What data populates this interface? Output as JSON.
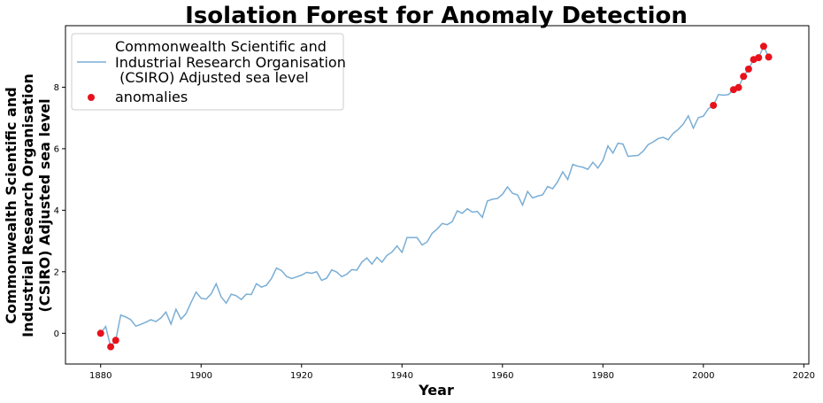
{
  "chart_data": {
    "type": "line",
    "title": "Isolation Forest for Anomaly Detection",
    "xlabel": "Year",
    "ylabel_lines": [
      "Commonwealth Scientific and",
      "Industrial Research Organisation",
      "(CSIRO) Adjusted sea level"
    ],
    "xlim": [
      1873,
      2021
    ],
    "ylim": [
      -1,
      10
    ],
    "xticks": [
      1880,
      1900,
      1920,
      1940,
      1960,
      1980,
      2000,
      2020
    ],
    "yticks": [
      0,
      2,
      4,
      6,
      8
    ],
    "legend_position": "upper-left",
    "legend": [
      {
        "label_lines": [
          "Commonwealth Scientific and",
          "Industrial Research Organisation",
          " (CSIRO) Adjusted sea level"
        ],
        "type": "line",
        "color": "#7aaed5"
      },
      {
        "label_lines": [
          "anomalies"
        ],
        "type": "marker",
        "color": "#e8121c"
      }
    ],
    "series": [
      {
        "name": "Commonwealth Scientific and Industrial Research Organisation (CSIRO) Adjusted sea level",
        "color": "#7aaed5",
        "x": [
          1880,
          1881,
          1882,
          1883,
          1884,
          1885,
          1886,
          1887,
          1888,
          1889,
          1890,
          1891,
          1892,
          1893,
          1894,
          1895,
          1896,
          1897,
          1898,
          1899,
          1900,
          1901,
          1902,
          1903,
          1904,
          1905,
          1906,
          1907,
          1908,
          1909,
          1910,
          1911,
          1912,
          1913,
          1914,
          1915,
          1916,
          1917,
          1918,
          1919,
          1920,
          1921,
          1922,
          1923,
          1924,
          1925,
          1926,
          1927,
          1928,
          1929,
          1930,
          1931,
          1932,
          1933,
          1934,
          1935,
          1936,
          1937,
          1938,
          1939,
          1940,
          1941,
          1942,
          1943,
          1944,
          1945,
          1946,
          1947,
          1948,
          1949,
          1950,
          1951,
          1952,
          1953,
          1954,
          1955,
          1956,
          1957,
          1958,
          1959,
          1960,
          1961,
          1962,
          1963,
          1964,
          1965,
          1966,
          1967,
          1968,
          1969,
          1970,
          1971,
          1972,
          1973,
          1974,
          1975,
          1976,
          1977,
          1978,
          1979,
          1980,
          1981,
          1982,
          1983,
          1984,
          1985,
          1986,
          1987,
          1988,
          1989,
          1990,
          1991,
          1992,
          1993,
          1994,
          1995,
          1996,
          1997,
          1998,
          1999,
          2000,
          2001,
          2002,
          2003,
          2004,
          2005,
          2006,
          2007,
          2008,
          2009,
          2010,
          2011,
          2012,
          2013
        ],
        "y": [
          0.0,
          0.22,
          -0.44,
          -0.23,
          0.59,
          0.53,
          0.44,
          0.23,
          0.29,
          0.36,
          0.44,
          0.38,
          0.5,
          0.69,
          0.3,
          0.78,
          0.46,
          0.64,
          1.0,
          1.34,
          1.14,
          1.11,
          1.28,
          1.61,
          1.18,
          0.98,
          1.27,
          1.22,
          1.1,
          1.27,
          1.26,
          1.61,
          1.5,
          1.56,
          1.78,
          2.12,
          2.04,
          1.85,
          1.78,
          1.83,
          1.89,
          1.98,
          1.95,
          2.0,
          1.72,
          1.79,
          2.06,
          1.99,
          1.84,
          1.92,
          2.07,
          2.05,
          2.31,
          2.45,
          2.25,
          2.47,
          2.31,
          2.53,
          2.64,
          2.84,
          2.63,
          3.11,
          3.11,
          3.11,
          2.87,
          2.97,
          3.25,
          3.39,
          3.57,
          3.53,
          3.63,
          3.98,
          3.9,
          4.05,
          3.94,
          3.96,
          3.77,
          4.3,
          4.36,
          4.38,
          4.52,
          4.76,
          4.55,
          4.5,
          4.17,
          4.61,
          4.4,
          4.46,
          4.5,
          4.77,
          4.7,
          4.93,
          5.25,
          5.0,
          5.49,
          5.43,
          5.4,
          5.33,
          5.56,
          5.37,
          5.62,
          6.09,
          5.86,
          6.18,
          6.15,
          5.75,
          5.77,
          5.78,
          5.92,
          6.13,
          6.22,
          6.33,
          6.37,
          6.29,
          6.5,
          6.63,
          6.8,
          7.07,
          6.67,
          7.01,
          7.06,
          7.3,
          7.41,
          7.76,
          7.74,
          7.76,
          7.92,
          7.99,
          8.35,
          8.59,
          8.9,
          8.96,
          9.33,
          8.98
        ]
      }
    ],
    "anomalies": {
      "name": "anomalies",
      "color": "#e8121c",
      "x": [
        1880,
        1882,
        1883,
        2002,
        2006,
        2007,
        2008,
        2009,
        2010,
        2011,
        2012,
        2013
      ],
      "y": [
        0.0,
        -0.44,
        -0.23,
        7.41,
        7.92,
        7.99,
        8.35,
        8.59,
        8.9,
        8.96,
        9.33,
        8.98
      ]
    }
  }
}
